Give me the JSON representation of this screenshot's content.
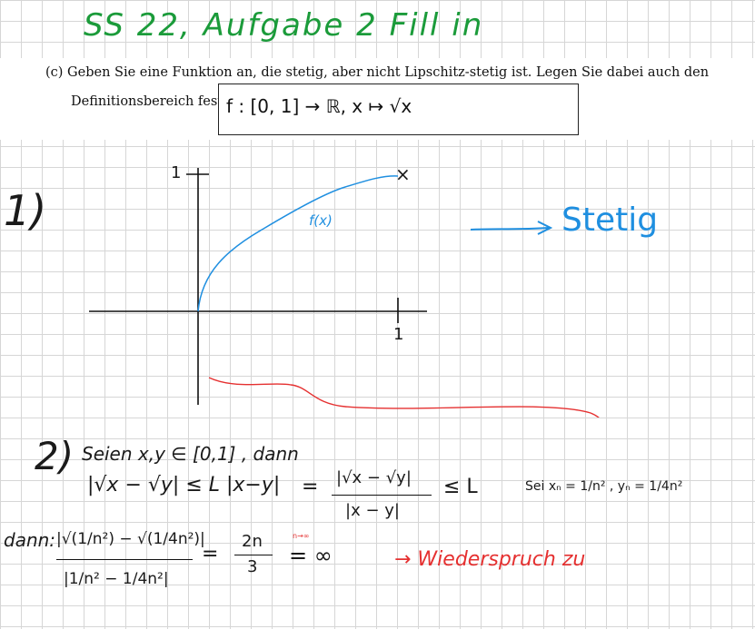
{
  "title": "SS 22, Aufgabe 2 Fill in",
  "task": {
    "line1": "(c) Geben Sie eine Funktion an, die stetig, aber nicht Lipschitz-stetig ist. Legen Sie dabei auch den",
    "line2": "Definitionsbereich fest.",
    "answer": "f : [0, 1]   → ℝ, x ↦ √x"
  },
  "part1": {
    "number": "1)",
    "y_tick": "1",
    "x_tick": "1",
    "curve_end_mark": "×",
    "curve_label": "f(x)",
    "conclusion": "Stetig"
  },
  "part2": {
    "number": "2)",
    "intro": "Seien x,y ∈ [0,1] , dann",
    "inequality": "|√x − √y| ≤ L |x−y|",
    "equals": "=",
    "ratio_num": "|√x − √y|",
    "ratio_den": "|x − y|",
    "leq_L": "≤ L",
    "sequences": "Sei xₙ = 1/n² , yₙ = 1/4n²",
    "dann": "dann:",
    "frac_num": "|√(1/n²) − √(1/4n²)|",
    "frac_den": "|1/n² − 1/4n²|",
    "equals2": "=",
    "result_num": "2n",
    "result_den": "3",
    "limit_label": "n→∞",
    "infinity": "= ∞",
    "contradiction": "→ Wiederspruch zu"
  },
  "colors": {
    "green": "#1b9b3a",
    "blue": "#1f8fe0",
    "red": "#e53030",
    "ink": "#1a1a1a"
  }
}
